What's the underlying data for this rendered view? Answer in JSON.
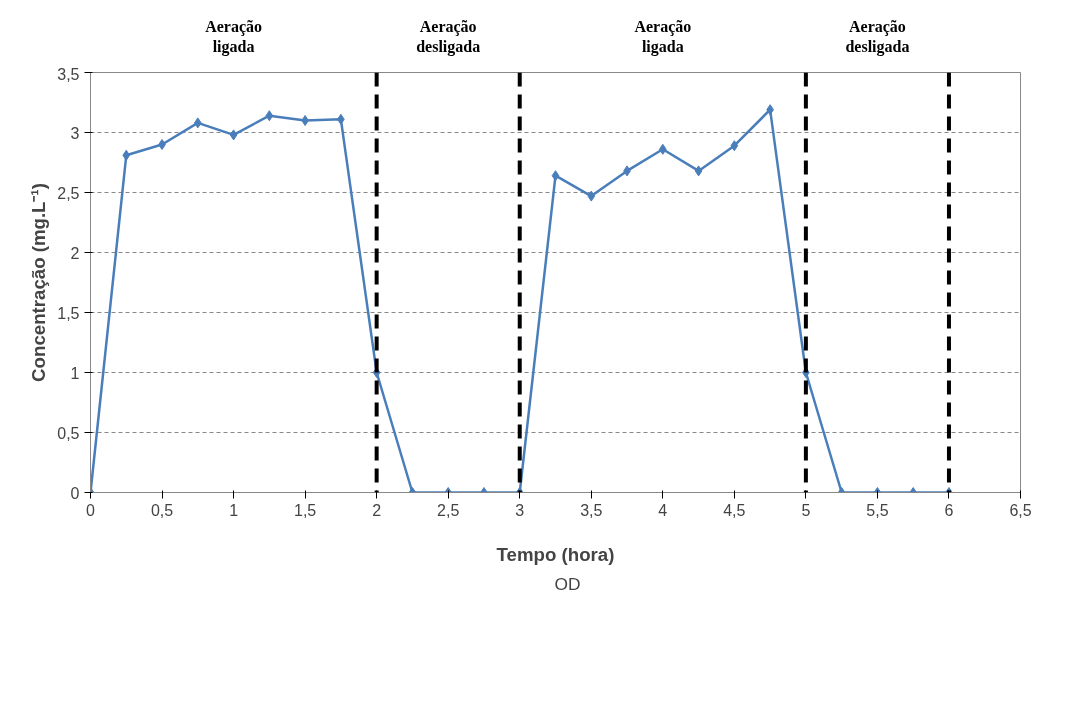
{
  "chart_data": {
    "type": "line",
    "xlabel": "Tempo (hora)",
    "ylabel": "Concentração (mg.L⁻¹)",
    "x": [
      0,
      0.25,
      0.5,
      0.75,
      1,
      1.25,
      1.5,
      1.75,
      2,
      2.25,
      2.5,
      2.75,
      3,
      3.25,
      3.5,
      3.75,
      4,
      4.25,
      4.5,
      4.75,
      5,
      5.25,
      5.5,
      5.75,
      6
    ],
    "series": [
      {
        "name": "OD",
        "color": "#4a7ebb",
        "values": [
          0,
          2.81,
          2.9,
          3.08,
          2.98,
          3.14,
          3.1,
          3.11,
          1.0,
          0,
          0,
          0,
          0,
          2.64,
          2.47,
          2.68,
          2.86,
          2.68,
          2.89,
          3.19,
          1.0,
          0,
          0,
          0,
          0
        ]
      }
    ],
    "xlim": [
      0,
      6.5
    ],
    "xticks": [
      0,
      {
        "value": 0.5,
        "label": "0,5"
      },
      1,
      {
        "value": 1.5,
        "label": "1,5"
      },
      2,
      {
        "value": 2.5,
        "label": "2,5"
      },
      3,
      {
        "value": 3.5,
        "label": "3,5"
      },
      4,
      {
        "value": 4.5,
        "label": "4,5"
      },
      5,
      {
        "value": 5.5,
        "label": "5,5"
      },
      6,
      {
        "value": 6.5,
        "label": "6,5"
      }
    ],
    "ylim": [
      0,
      3.5
    ],
    "yticks": [
      0,
      {
        "value": 0.5,
        "label": "0,5"
      },
      1,
      {
        "value": 1.5,
        "label": "1,5"
      },
      2,
      {
        "value": 2.5,
        "label": "2,5"
      },
      3,
      {
        "value": 3.5,
        "label": "3,5"
      }
    ],
    "ref_lines": [
      {
        "axis": "x",
        "value": 2,
        "color": "#000000",
        "line_style": "dashed"
      },
      {
        "axis": "x",
        "value": 3,
        "color": "#000000",
        "line_style": "dashed"
      },
      {
        "axis": "x",
        "value": 5,
        "color": "#000000",
        "line_style": "dashed"
      },
      {
        "axis": "x",
        "value": 6,
        "color": "#000000",
        "line_style": "dashed"
      }
    ],
    "annotations": [
      "Aeração\nligada",
      "Aeração\ndesligada",
      "Aeração\nligada",
      "Aeração\ndesligada"
    ],
    "grid": "y",
    "legend": "bottom",
    "marker": "diamond",
    "line_style": "solid"
  }
}
